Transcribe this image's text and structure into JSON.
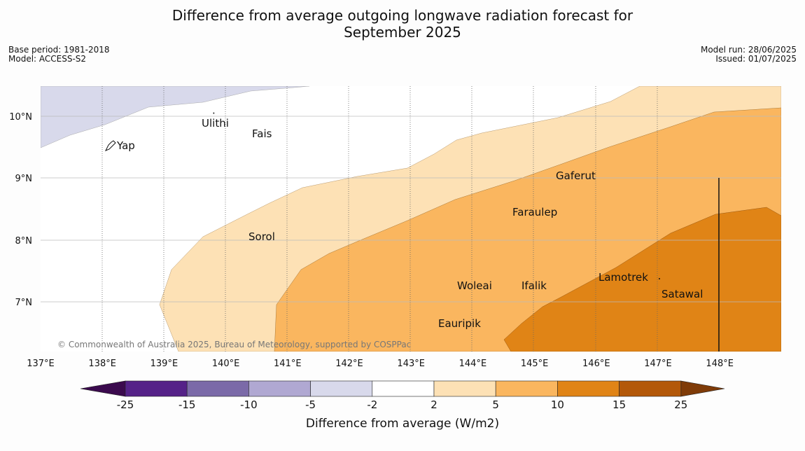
{
  "header": {
    "title_line1": "Difference from average outgoing longwave radiation forecast for",
    "title_line2": "September 2025",
    "base_period": "Base period: 1981-2018",
    "model": "Model: ACCESS-S2",
    "model_run": "Model run: 28/06/2025",
    "issued": "Issued: 01/07/2025"
  },
  "map": {
    "lon_ticks": [
      "137°E",
      "138°E",
      "139°E",
      "140°E",
      "141°E",
      "142°E",
      "143°E",
      "144°E",
      "145°E",
      "146°E",
      "147°E",
      "148°E"
    ],
    "lat_ticks": [
      "10°N",
      "9°N",
      "8°N",
      "7°N"
    ],
    "places": {
      "yap": "Yap",
      "ulithi": "Ulithi",
      "fais": "Fais",
      "gaferut": "Gaferut",
      "faraulep": "Faraulep",
      "sorol": "Sorol",
      "woleai": "Woleai",
      "ifalik": "Ifalik",
      "lamotrek": "Lamotrek",
      "satawal": "Satawal",
      "eauripik": "Eauripik"
    },
    "copyright": "© Commonwealth of Australia 2025, Bureau of Meteorology, supported by COSPPac"
  },
  "colorbar": {
    "labels": [
      "-25",
      "-15",
      "-10",
      "-5",
      "-2",
      "2",
      "5",
      "10",
      "15",
      "25"
    ],
    "colors": [
      "#552288",
      "#7b6aa8",
      "#b0a8d2",
      "#d8d9eb",
      "#ffffff",
      "#fde1b5",
      "#fab65f",
      "#e08416",
      "#b35809"
    ],
    "low_extend_color": "#3b0a4e",
    "high_extend_color": "#7f3b08",
    "title": "Difference from average (W/m2)"
  }
}
